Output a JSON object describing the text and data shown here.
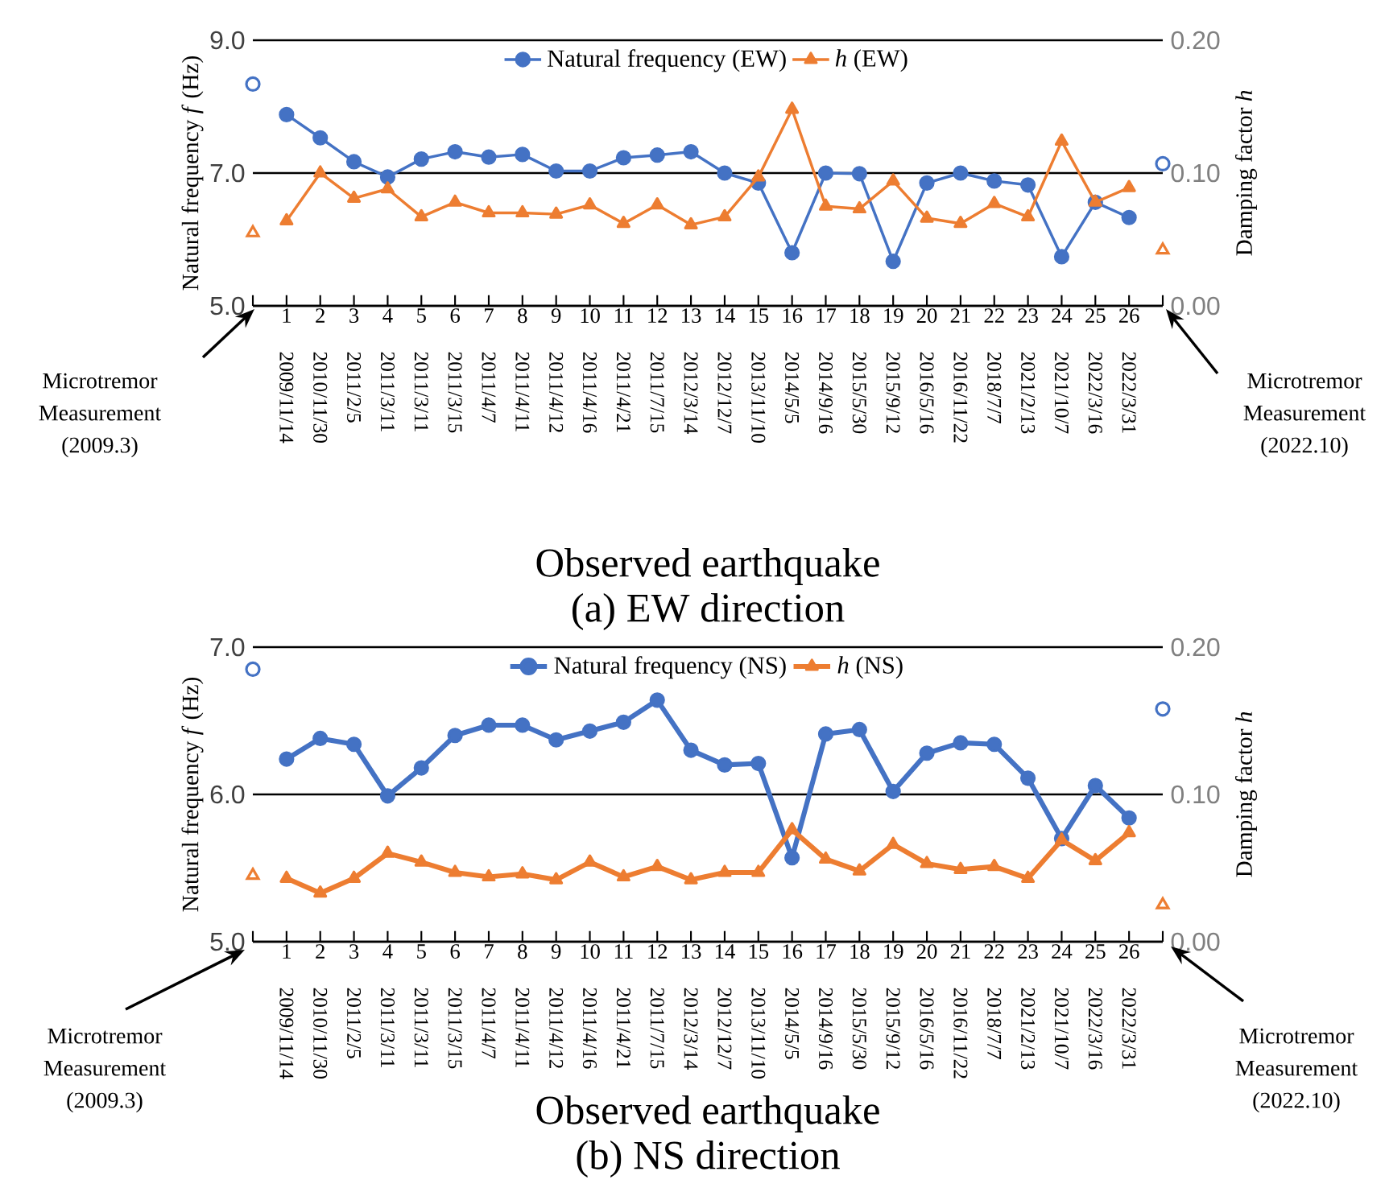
{
  "chart_data": [
    {
      "type": "line",
      "title": "(a)  EW direction",
      "xlabel": "Observed earthquake",
      "ylabel": "Natural frequency *f* (Hz)",
      "y2label": "Damping factor *h*",
      "categories": [
        null,
        "1",
        "2",
        "3",
        "4",
        "5",
        "6",
        "7",
        "8",
        "9",
        "10",
        "11",
        "12",
        "13",
        "14",
        "15",
        "16",
        "17",
        "18",
        "19",
        "20",
        "21",
        "22",
        "23",
        "24",
        "25",
        "26",
        null
      ],
      "ylim": [
        5.0,
        9.0
      ],
      "yticks": [
        {
          "value": 5.0,
          "label": "5.0"
        },
        {
          "value": 7.0,
          "label": "7.0"
        },
        {
          "value": 9.0,
          "label": "9.0"
        }
      ],
      "y2lim": [
        0,
        0.2
      ],
      "y2ticks": [
        {
          "value": 0,
          "label": "0.00"
        },
        {
          "value": 0.1,
          "label": "0.10"
        },
        {
          "value": 0.2,
          "label": "0.20"
        }
      ],
      "grid": "y",
      "legend": "top",
      "series": [
        {
          "name": "Natural frequency (EW)",
          "color": "#4472c4",
          "marker": "circle",
          "values": [
            null,
            7.88,
            7.53,
            7.17,
            6.94,
            7.21,
            7.32,
            7.24,
            7.28,
            7.03,
            7.03,
            7.23,
            7.27,
            7.32,
            7.0,
            6.85,
            5.8,
            7.0,
            6.99,
            5.67,
            6.85,
            7.0,
            6.88,
            6.82,
            5.74,
            6.56,
            6.33,
            null
          ]
        },
        {
          "name": "*h* (EW)",
          "color": "#ed7d31",
          "marker": "triangle",
          "axis": "y2",
          "values": [
            null,
            0.064,
            0.1,
            0.081,
            0.088,
            0.067,
            0.078,
            0.07,
            0.07,
            0.069,
            0.076,
            0.062,
            0.076,
            0.061,
            0.067,
            0.097,
            0.148,
            0.075,
            0.073,
            0.094,
            0.066,
            0.062,
            0.077,
            0.067,
            0.124,
            0.078,
            0.089,
            null
          ]
        },
        {
          "type": "scatter",
          "color": "#4472c4",
          "marker": "circle",
          "values": [
            8.34,
            null,
            null,
            null,
            null,
            null,
            null,
            null,
            null,
            null,
            null,
            null,
            null,
            null,
            null,
            null,
            null,
            null,
            null,
            null,
            null,
            null,
            null,
            null,
            null,
            null,
            null,
            7.14
          ]
        },
        {
          "type": "scatter",
          "color": "#ed7d31",
          "marker": "triangle",
          "axis": "y2",
          "values": [
            0.055,
            null,
            null,
            null,
            null,
            null,
            null,
            null,
            null,
            null,
            null,
            null,
            null,
            null,
            null,
            null,
            null,
            null,
            null,
            null,
            null,
            null,
            null,
            null,
            null,
            null,
            null,
            0.042
          ]
        }
      ],
      "annotations": [
        "Microtremor Measurement (2009.3)",
        "Microtremor Measurement (2022.10)",
        "2009/11/14",
        "2010/11/30",
        "2011/2/5",
        "2011/3/11",
        "2011/3/11",
        "2011/3/15",
        "2011/4/7",
        "2011/4/11",
        "2011/4/12",
        "2011/4/16",
        "2011/4/21",
        "2011/7/15",
        "2012/3/14",
        "2012/12/7",
        "2013/11/10",
        "2014/5/5",
        "2014/9/16",
        "2015/5/30",
        "2015/9/12",
        "2016/5/16",
        "2016/11/22",
        "2018/7/7",
        "2021/2/13",
        "2021/10/7",
        "2022/3/16",
        "2022/3/31"
      ]
    },
    {
      "type": "line",
      "title": "(b)  NS direction",
      "xlabel": "Observed earthquake",
      "ylabel": "Natural frequency *f* (Hz)",
      "y2label": "Damping factor *h*",
      "categories": [
        null,
        "1",
        "2",
        "3",
        "4",
        "5",
        "6",
        "7",
        "8",
        "9",
        "10",
        "11",
        "12",
        "13",
        "14",
        "15",
        "16",
        "17",
        "18",
        "19",
        "20",
        "21",
        "22",
        "23",
        "24",
        "25",
        "26",
        null
      ],
      "ylim": [
        5.0,
        7.0
      ],
      "yticks": [
        {
          "value": 5.0,
          "label": "5.0"
        },
        {
          "value": 6.0,
          "label": "6.0"
        },
        {
          "value": 7.0,
          "label": "7.0"
        }
      ],
      "y2lim": [
        0,
        0.2
      ],
      "y2ticks": [
        {
          "value": 0,
          "label": "0.00"
        },
        {
          "value": 0.1,
          "label": "0.10"
        },
        {
          "value": 0.2,
          "label": "0.20"
        }
      ],
      "grid": "y",
      "legend": "top",
      "series": [
        {
          "name": "Natural frequency (NS)",
          "color": "#4472c4",
          "marker": "circle",
          "values": [
            null,
            6.24,
            6.38,
            6.34,
            5.99,
            6.18,
            6.4,
            6.47,
            6.47,
            6.37,
            6.43,
            6.49,
            6.64,
            6.3,
            6.2,
            6.21,
            5.57,
            6.41,
            6.44,
            6.02,
            6.28,
            6.35,
            6.34,
            6.11,
            5.7,
            6.06,
            5.84,
            null
          ]
        },
        {
          "name": "*h* (NS)",
          "color": "#ed7d31",
          "marker": "triangle",
          "axis": "y2",
          "values": [
            null,
            0.043,
            0.033,
            0.043,
            0.06,
            0.054,
            0.047,
            0.044,
            0.046,
            0.042,
            0.054,
            0.044,
            0.051,
            0.042,
            0.047,
            0.047,
            0.076,
            0.056,
            0.048,
            0.066,
            0.053,
            0.049,
            0.051,
            0.043,
            0.069,
            0.055,
            0.074,
            null
          ]
        },
        {
          "type": "scatter",
          "color": "#4472c4",
          "marker": "circle",
          "values": [
            6.85,
            null,
            null,
            null,
            null,
            null,
            null,
            null,
            null,
            null,
            null,
            null,
            null,
            null,
            null,
            null,
            null,
            null,
            null,
            null,
            null,
            null,
            null,
            null,
            null,
            null,
            null,
            6.58
          ]
        },
        {
          "type": "scatter",
          "color": "#ed7d31",
          "marker": "triangle",
          "axis": "y2",
          "values": [
            0.045,
            null,
            null,
            null,
            null,
            null,
            null,
            null,
            null,
            null,
            null,
            null,
            null,
            null,
            null,
            null,
            null,
            null,
            null,
            null,
            null,
            null,
            null,
            null,
            null,
            null,
            null,
            0.025
          ]
        }
      ],
      "annotations": [
        "Microtremor Measurement (2009.3)",
        "Microtremor Measurement (2022.10)",
        "2009/11/14",
        "2010/11/30",
        "2011/2/5",
        "2011/3/11",
        "2011/3/11",
        "2011/3/15",
        "2011/4/7",
        "2011/4/11",
        "2011/4/12",
        "2011/4/16",
        "2011/4/21",
        "2011/7/15",
        "2012/3/14",
        "2012/12/7",
        "2013/11/10",
        "2014/5/5",
        "2014/9/16",
        "2015/5/30",
        "2015/9/12",
        "2016/5/16",
        "2016/11/22",
        "2018/7/7",
        "2021/2/13",
        "2021/10/7",
        "2022/3/16",
        "2022/3/31"
      ]
    }
  ]
}
